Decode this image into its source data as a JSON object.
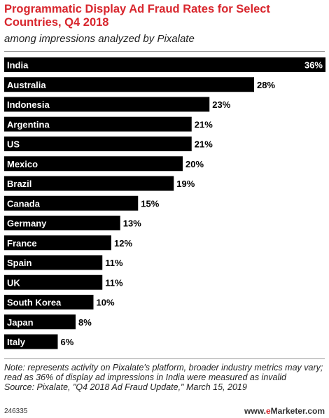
{
  "chart_data": {
    "type": "bar",
    "orientation": "horizontal",
    "title": "Programmatic Display Ad Fraud Rates for Select Countries, Q4 2018",
    "subtitle": "among impressions analyzed by Pixalate",
    "categories": [
      "India",
      "Australia",
      "Indonesia",
      "Argentina",
      "US",
      "Mexico",
      "Brazil",
      "Canada",
      "Germany",
      "France",
      "Spain",
      "UK",
      "South Korea",
      "Japan",
      "Italy"
    ],
    "values": [
      36,
      28,
      23,
      21,
      21,
      20,
      19,
      15,
      13,
      12,
      11,
      11,
      10,
      8,
      6
    ],
    "value_suffix": "%",
    "xlim": [
      0,
      36
    ],
    "grid": false,
    "bar_color": "#000000"
  },
  "note": "Note: represents activity on Pixalate's platform, broader industry metrics may vary; read as 36% of display ad impressions in India were measured as invalid",
  "source": "Source: Pixalate, \"Q4 2018 Ad Fraud Update,\" March 15, 2019",
  "footer": {
    "chart_id": "246335",
    "brand_prefix": "www.",
    "brand_e": "e",
    "brand_rest": "Marketer.com"
  }
}
